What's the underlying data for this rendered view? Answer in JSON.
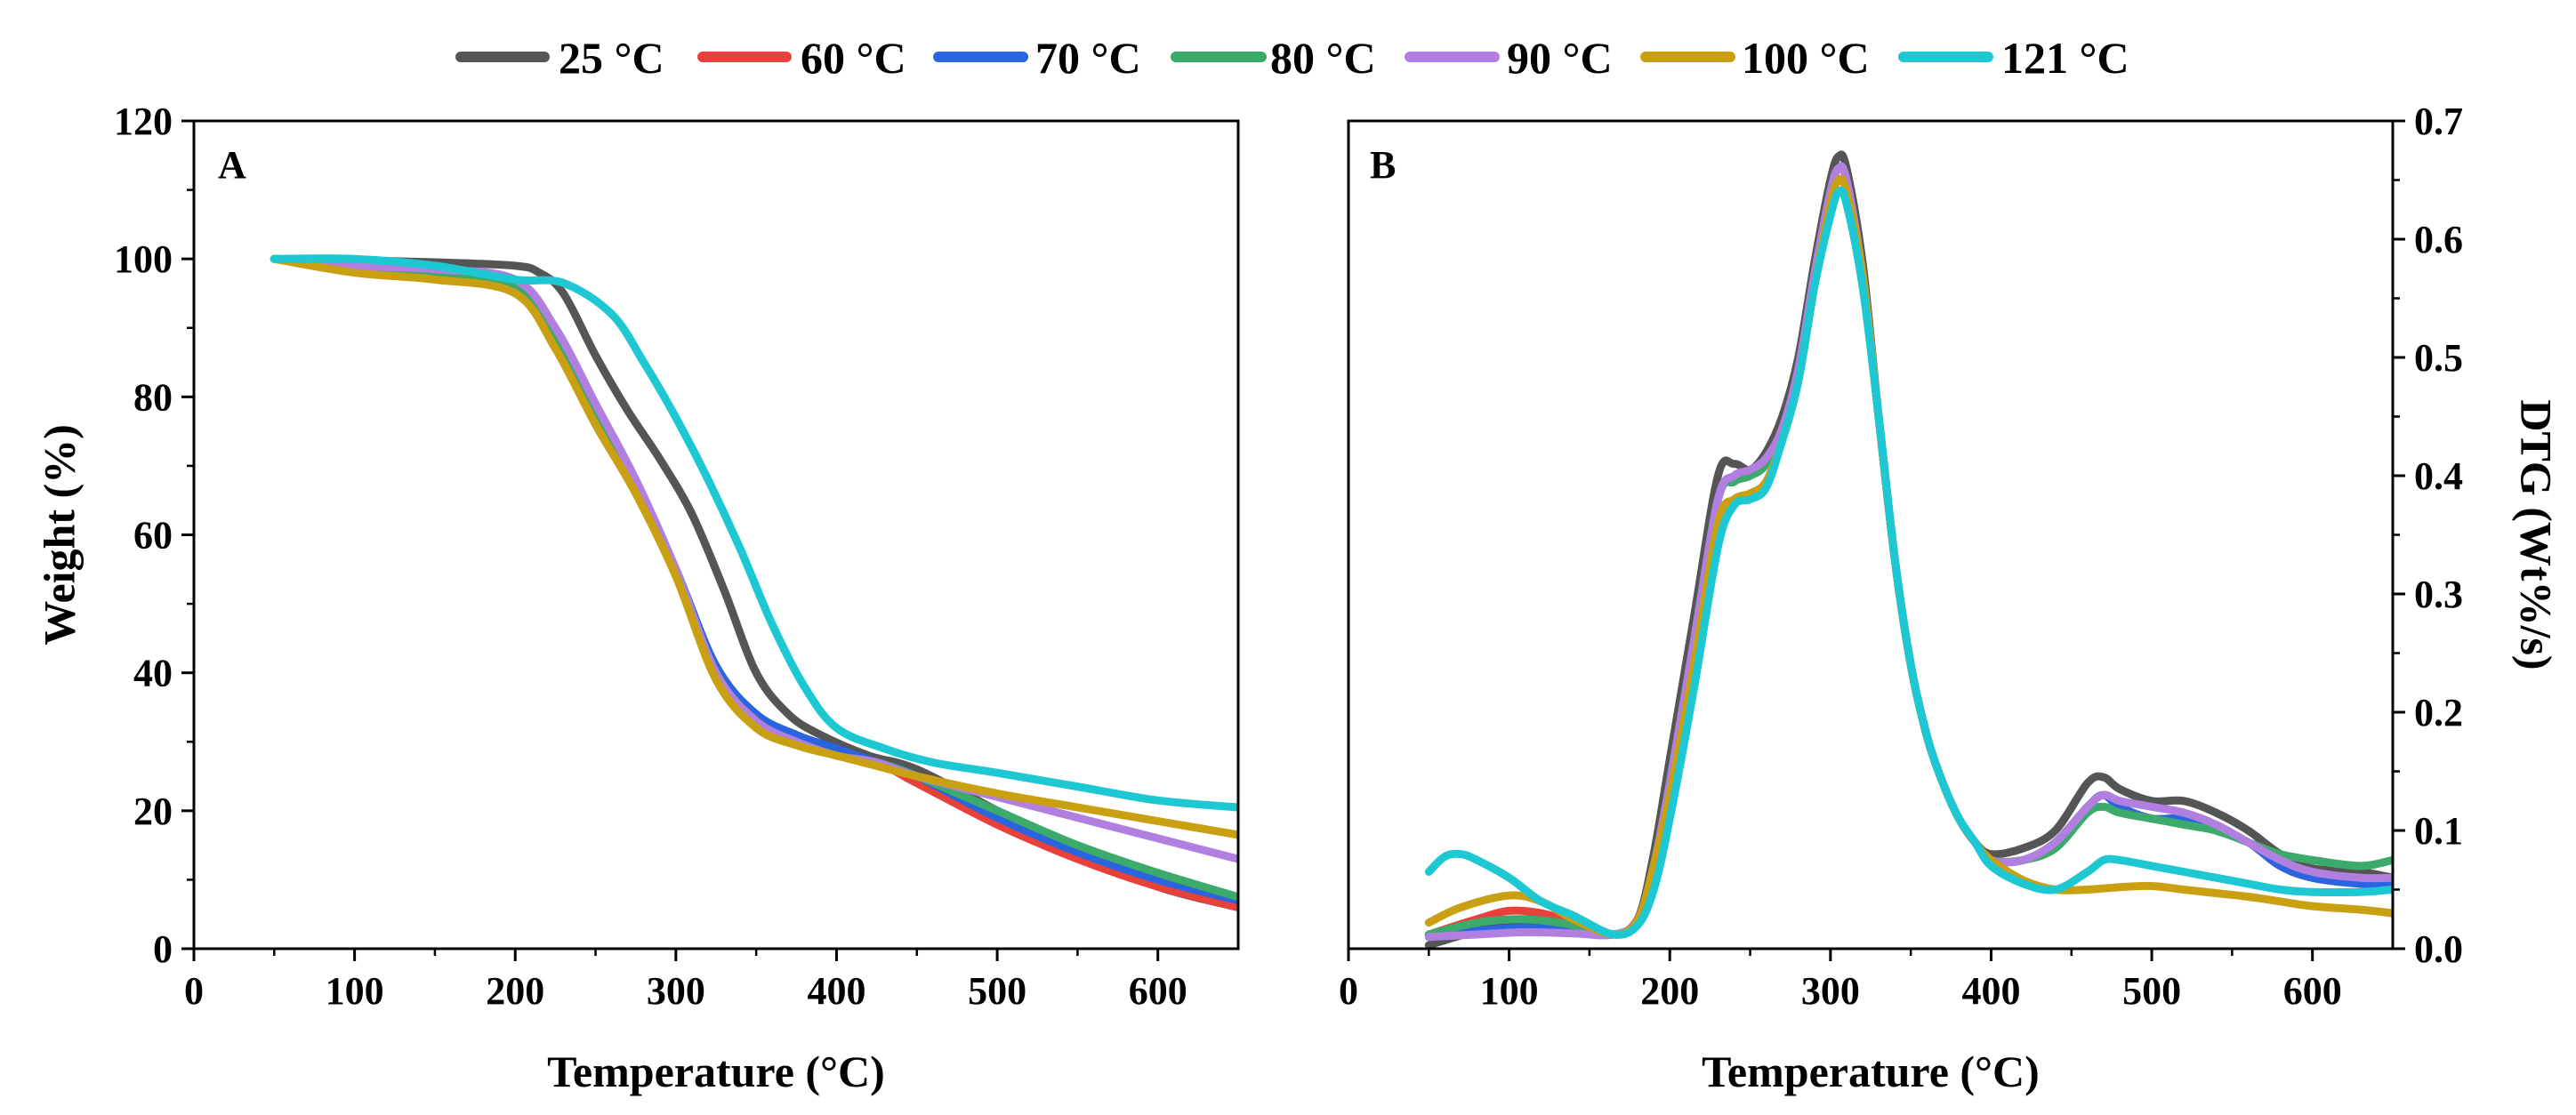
{
  "legend": {
    "entries": [
      {
        "name": "25 °C",
        "color": "#555555"
      },
      {
        "name": "60 °C",
        "color": "#E8413C"
      },
      {
        "name": "70 °C",
        "color": "#2A64DE"
      },
      {
        "name": "80 °C",
        "color": "#3BAA6A"
      },
      {
        "name": "90 °C",
        "color": "#B07FE0"
      },
      {
        "name": "100 °C",
        "color": "#C9A012"
      },
      {
        "name": "121 °C",
        "color": "#1EC8D2"
      }
    ]
  },
  "chart_data": [
    {
      "type": "line",
      "panel_label": "A",
      "title": "",
      "xlabel": "Temperature (°C)",
      "ylabel": "Weight  (%)",
      "xlim": [
        0,
        650
      ],
      "ylim": [
        0,
        120
      ],
      "xticks": [
        0,
        100,
        200,
        300,
        400,
        500,
        600
      ],
      "yticks": [
        0,
        20,
        40,
        60,
        80,
        100,
        120
      ],
      "series": [
        {
          "name": "25 °C",
          "x": [
            50,
            100,
            150,
            200,
            215,
            230,
            250,
            270,
            290,
            310,
            330,
            350,
            370,
            390,
            420,
            450,
            500,
            550,
            600,
            650
          ],
          "values": [
            100,
            99.8,
            99.5,
            99,
            98,
            95,
            86,
            78,
            71,
            63,
            52,
            40,
            34,
            31,
            28,
            26,
            20,
            14,
            9,
            6
          ]
        },
        {
          "name": "60 °C",
          "x": [
            50,
            100,
            150,
            200,
            225,
            250,
            275,
            300,
            325,
            350,
            375,
            400,
            425,
            450,
            500,
            550,
            600,
            650
          ],
          "values": [
            100,
            98.5,
            97.5,
            96,
            88,
            77,
            67,
            55,
            40,
            33,
            30,
            28,
            27,
            24,
            18,
            13,
            9,
            6
          ]
        },
        {
          "name": "70 °C",
          "x": [
            50,
            100,
            150,
            200,
            225,
            250,
            275,
            300,
            325,
            350,
            375,
            400,
            425,
            450,
            500,
            550,
            600,
            650
          ],
          "values": [
            100,
            98.5,
            97.5,
            96,
            88,
            77,
            67,
            55,
            41,
            34,
            31,
            29,
            27,
            25,
            19,
            14,
            10,
            7
          ]
        },
        {
          "name": "80 °C",
          "x": [
            50,
            100,
            150,
            200,
            225,
            250,
            275,
            300,
            325,
            350,
            375,
            400,
            425,
            450,
            500,
            550,
            600,
            650
          ],
          "values": [
            100,
            98.5,
            97.5,
            96,
            88,
            77,
            67,
            55,
            40,
            33,
            30,
            28,
            27,
            25,
            20,
            15,
            11,
            7.5
          ]
        },
        {
          "name": "90 °C",
          "x": [
            50,
            100,
            150,
            200,
            225,
            250,
            275,
            300,
            325,
            350,
            375,
            400,
            425,
            450,
            500,
            550,
            600,
            650
          ],
          "values": [
            100,
            99,
            98.5,
            97,
            90,
            79,
            68,
            55,
            40,
            33,
            30,
            28,
            27,
            25,
            22,
            19,
            16,
            13
          ]
        },
        {
          "name": "100 °C",
          "x": [
            50,
            100,
            150,
            200,
            225,
            250,
            275,
            300,
            325,
            350,
            375,
            400,
            425,
            450,
            500,
            550,
            600,
            650
          ],
          "values": [
            100,
            98,
            97,
            95,
            87,
            76,
            66,
            54,
            39,
            32,
            29.5,
            28,
            26.5,
            25,
            22.5,
            20.5,
            18.5,
            16.5
          ]
        },
        {
          "name": "121 °C",
          "x": [
            50,
            100,
            150,
            200,
            230,
            260,
            280,
            300,
            320,
            340,
            360,
            380,
            400,
            430,
            460,
            500,
            550,
            600,
            650
          ],
          "values": [
            100,
            100,
            99,
            97,
            96.5,
            92,
            85,
            77,
            68,
            58,
            47,
            38,
            32,
            29,
            27,
            25.5,
            23.5,
            21.5,
            20.5
          ]
        }
      ]
    },
    {
      "type": "line",
      "panel_label": "B",
      "title": "",
      "xlabel": "Temperature (°C)",
      "ylabel": "DTG (Wt%/s)",
      "xlim": [
        0,
        650
      ],
      "ylim": [
        0,
        0.7
      ],
      "xticks": [
        0,
        100,
        200,
        300,
        400,
        500,
        600
      ],
      "yticks": [
        0.0,
        0.1,
        0.2,
        0.3,
        0.4,
        0.5,
        0.6,
        0.7
      ],
      "series": [
        {
          "name": "25 °C",
          "x": [
            50,
            80,
            110,
            140,
            165,
            180,
            190,
            200,
            215,
            230,
            240,
            250,
            260,
            270,
            280,
            290,
            300,
            305,
            310,
            320,
            330,
            340,
            350,
            360,
            370,
            380,
            390,
            400,
            420,
            440,
            460,
            470,
            480,
            500,
            520,
            540,
            560,
            580,
            600,
            630,
            650
          ],
          "values": [
            0.003,
            0.015,
            0.022,
            0.02,
            0.012,
            0.025,
            0.08,
            0.16,
            0.28,
            0.4,
            0.41,
            0.405,
            0.42,
            0.45,
            0.5,
            0.58,
            0.65,
            0.67,
            0.66,
            0.58,
            0.45,
            0.33,
            0.24,
            0.18,
            0.14,
            0.11,
            0.09,
            0.08,
            0.085,
            0.1,
            0.14,
            0.145,
            0.135,
            0.125,
            0.125,
            0.115,
            0.1,
            0.08,
            0.068,
            0.065,
            0.06
          ]
        },
        {
          "name": "60 °C",
          "x": [
            50,
            80,
            100,
            120,
            140,
            165,
            180,
            190,
            200,
            215,
            230,
            240,
            250,
            260,
            270,
            280,
            290,
            300,
            305,
            310,
            320,
            330,
            340,
            350,
            360,
            370,
            380,
            390,
            400,
            420,
            440,
            460,
            470,
            480,
            500,
            520,
            540,
            560,
            580,
            600,
            630,
            650
          ],
          "values": [
            0.012,
            0.025,
            0.032,
            0.03,
            0.022,
            0.012,
            0.025,
            0.07,
            0.14,
            0.26,
            0.38,
            0.395,
            0.4,
            0.41,
            0.44,
            0.49,
            0.57,
            0.64,
            0.66,
            0.65,
            0.57,
            0.45,
            0.33,
            0.24,
            0.18,
            0.14,
            0.11,
            0.09,
            0.075,
            0.075,
            0.09,
            0.12,
            0.13,
            0.12,
            0.11,
            0.11,
            0.1,
            0.09,
            0.07,
            0.06,
            0.055,
            0.055
          ]
        },
        {
          "name": "70 °C",
          "x": [
            50,
            80,
            110,
            140,
            165,
            180,
            190,
            200,
            215,
            230,
            240,
            250,
            260,
            270,
            280,
            290,
            300,
            305,
            310,
            320,
            330,
            340,
            350,
            360,
            370,
            380,
            390,
            400,
            420,
            440,
            460,
            470,
            480,
            500,
            520,
            540,
            560,
            580,
            600,
            630,
            650
          ],
          "values": [
            0.01,
            0.015,
            0.018,
            0.015,
            0.012,
            0.024,
            0.07,
            0.14,
            0.26,
            0.38,
            0.395,
            0.4,
            0.41,
            0.44,
            0.49,
            0.57,
            0.64,
            0.66,
            0.65,
            0.57,
            0.45,
            0.33,
            0.24,
            0.18,
            0.14,
            0.11,
            0.09,
            0.075,
            0.075,
            0.09,
            0.12,
            0.13,
            0.12,
            0.11,
            0.11,
            0.1,
            0.09,
            0.07,
            0.06,
            0.055,
            0.055
          ]
        },
        {
          "name": "80 °C",
          "x": [
            50,
            80,
            110,
            140,
            165,
            180,
            190,
            200,
            215,
            230,
            240,
            250,
            260,
            270,
            280,
            290,
            300,
            305,
            310,
            320,
            330,
            340,
            350,
            360,
            370,
            380,
            390,
            400,
            420,
            440,
            460,
            470,
            480,
            500,
            520,
            540,
            560,
            580,
            600,
            630,
            650
          ],
          "values": [
            0.012,
            0.022,
            0.025,
            0.02,
            0.012,
            0.024,
            0.07,
            0.14,
            0.26,
            0.38,
            0.395,
            0.4,
            0.41,
            0.44,
            0.49,
            0.57,
            0.64,
            0.66,
            0.65,
            0.57,
            0.45,
            0.33,
            0.24,
            0.18,
            0.14,
            0.11,
            0.09,
            0.075,
            0.075,
            0.085,
            0.115,
            0.12,
            0.115,
            0.11,
            0.105,
            0.1,
            0.09,
            0.08,
            0.075,
            0.07,
            0.075
          ]
        },
        {
          "name": "90 °C",
          "x": [
            50,
            80,
            110,
            140,
            165,
            180,
            190,
            200,
            215,
            230,
            240,
            250,
            260,
            270,
            280,
            290,
            300,
            305,
            310,
            320,
            330,
            340,
            350,
            360,
            370,
            380,
            390,
            400,
            420,
            440,
            460,
            470,
            480,
            500,
            520,
            540,
            560,
            580,
            600,
            630,
            650
          ],
          "values": [
            0.01,
            0.012,
            0.014,
            0.013,
            0.012,
            0.024,
            0.07,
            0.14,
            0.26,
            0.38,
            0.4,
            0.405,
            0.415,
            0.44,
            0.49,
            0.57,
            0.64,
            0.66,
            0.65,
            0.57,
            0.45,
            0.33,
            0.24,
            0.18,
            0.14,
            0.11,
            0.09,
            0.075,
            0.075,
            0.09,
            0.12,
            0.13,
            0.125,
            0.12,
            0.115,
            0.105,
            0.09,
            0.075,
            0.065,
            0.06,
            0.06
          ]
        },
        {
          "name": "100 °C",
          "x": [
            50,
            70,
            100,
            120,
            140,
            165,
            180,
            190,
            200,
            215,
            230,
            240,
            250,
            260,
            270,
            280,
            290,
            300,
            305,
            310,
            320,
            330,
            340,
            350,
            360,
            370,
            380,
            390,
            400,
            420,
            440,
            460,
            480,
            500,
            520,
            540,
            560,
            580,
            600,
            630,
            650
          ],
          "values": [
            0.022,
            0.035,
            0.045,
            0.04,
            0.025,
            0.012,
            0.024,
            0.07,
            0.13,
            0.24,
            0.36,
            0.38,
            0.385,
            0.395,
            0.43,
            0.48,
            0.56,
            0.63,
            0.65,
            0.64,
            0.57,
            0.45,
            0.33,
            0.24,
            0.18,
            0.14,
            0.11,
            0.09,
            0.075,
            0.058,
            0.05,
            0.05,
            0.052,
            0.053,
            0.05,
            0.047,
            0.044,
            0.04,
            0.036,
            0.033,
            0.03
          ]
        },
        {
          "name": "121 °C",
          "x": [
            50,
            60,
            70,
            80,
            100,
            120,
            140,
            165,
            180,
            190,
            200,
            215,
            230,
            240,
            250,
            260,
            270,
            280,
            290,
            300,
            305,
            310,
            320,
            330,
            340,
            350,
            360,
            370,
            380,
            390,
            400,
            420,
            440,
            460,
            470,
            480,
            500,
            520,
            540,
            560,
            580,
            600,
            630,
            650
          ],
          "values": [
            0.065,
            0.078,
            0.08,
            0.075,
            0.06,
            0.04,
            0.028,
            0.012,
            0.02,
            0.05,
            0.11,
            0.22,
            0.34,
            0.375,
            0.38,
            0.39,
            0.43,
            0.48,
            0.56,
            0.62,
            0.64,
            0.63,
            0.56,
            0.45,
            0.33,
            0.24,
            0.18,
            0.14,
            0.11,
            0.09,
            0.07,
            0.055,
            0.05,
            0.065,
            0.075,
            0.075,
            0.07,
            0.065,
            0.06,
            0.055,
            0.05,
            0.048,
            0.048,
            0.05
          ]
        }
      ]
    }
  ]
}
